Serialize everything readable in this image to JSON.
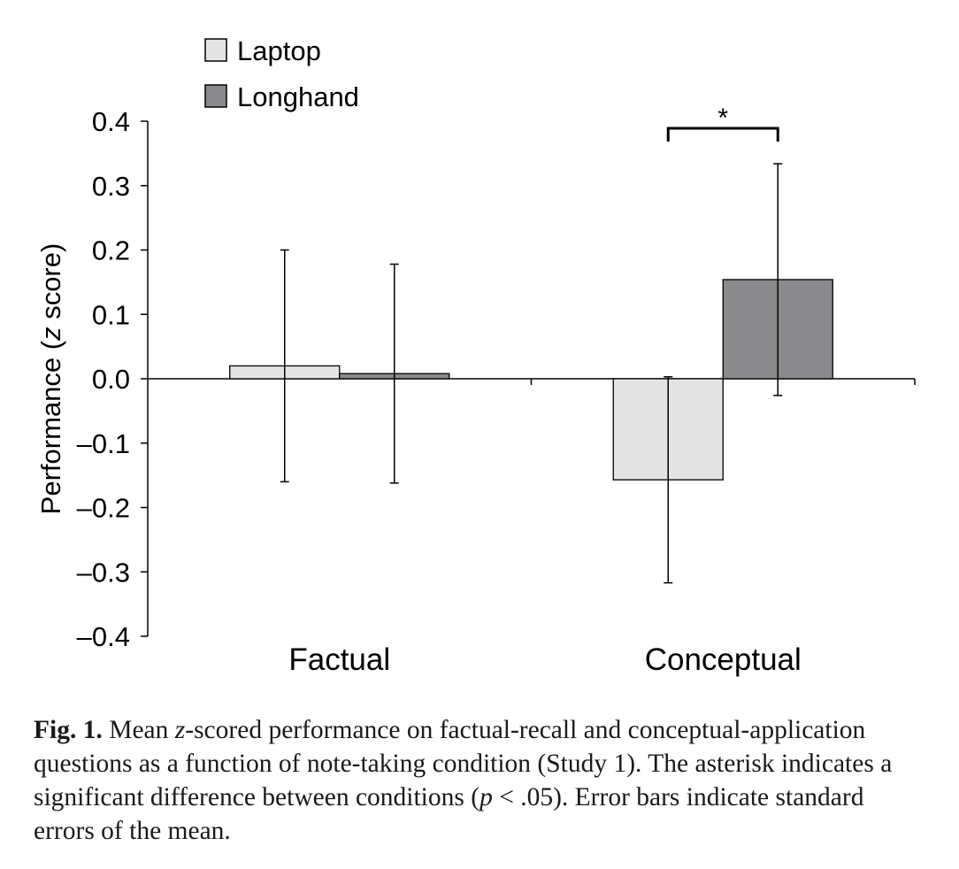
{
  "chart_data": {
    "type": "bar",
    "categories": [
      "Factual",
      "Conceptual"
    ],
    "series": [
      {
        "name": "Laptop",
        "color": "#e4e4e4",
        "values": [
          0.02,
          -0.157
        ],
        "error": [
          0.18,
          0.16
        ]
      },
      {
        "name": "Longhand",
        "color": "#8a8a8c",
        "values": [
          0.008,
          0.154
        ],
        "error": [
          0.17,
          0.18
        ]
      }
    ],
    "ylabel_prefix": "Performance (",
    "ylabel_italic": "z",
    "ylabel_suffix": " score)",
    "ylim": [
      -0.4,
      0.4
    ],
    "yticks": [
      "0.4",
      "0.3",
      "0.2",
      "0.1",
      "0.0",
      "–0.1",
      "–0.2",
      "–0.3",
      "–0.4"
    ],
    "legend_position": "top-left",
    "grid": false,
    "annotations": [
      {
        "type": "significance-bracket",
        "category": "Conceptual",
        "text": "*"
      }
    ]
  },
  "caption": {
    "label": "Fig. 1.",
    "text_1": " Mean ",
    "text_italic_1": "z",
    "text_2": "-scored performance on factual-recall and conceptual-application questions as a function of note-taking condition (Study 1). The asterisk indicates a significant difference between conditions (",
    "text_italic_2": "p",
    "text_3": " < .05). Error bars indicate standard errors of the mean."
  }
}
